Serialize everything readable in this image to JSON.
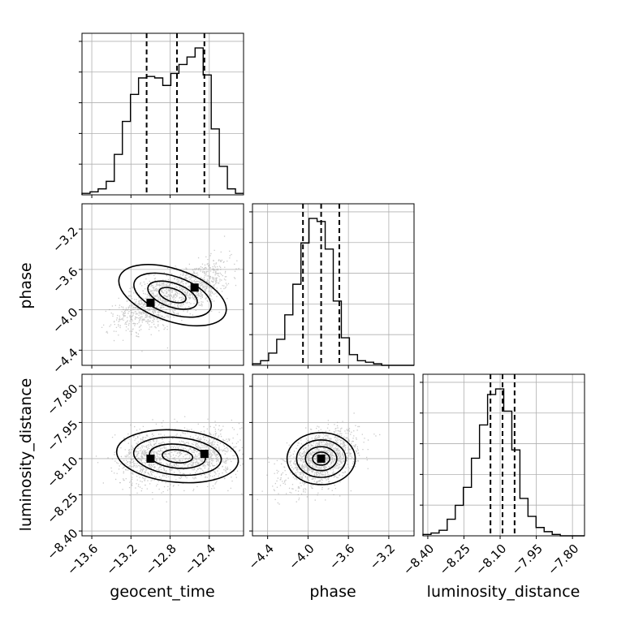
{
  "chart_data": {
    "type": "corner",
    "parameters": [
      "geocent_time",
      "phase",
      "luminosity_distance"
    ],
    "ranges": {
      "geocent_time": [
        -13.7,
        -12.05
      ],
      "phase": [
        -4.55,
        -2.95
      ],
      "luminosity_distance": [
        -8.42,
        -7.75
      ]
    },
    "ticks": {
      "geocent_time": [
        -13.6,
        -13.2,
        -12.8,
        -12.4
      ],
      "phase": [
        -4.4,
        -4.0,
        -3.6,
        -3.2
      ],
      "luminosity_distance": [
        -8.4,
        -8.25,
        -8.1,
        -7.95,
        -7.8
      ]
    },
    "tick_labels": {
      "geocent_time": [
        "−13.6",
        "−13.2",
        "−12.8",
        "−12.4"
      ],
      "phase": [
        "−4.4",
        "−4.0",
        "−3.6",
        "−3.2"
      ],
      "luminosity_distance": [
        "−8.40",
        "−8.25",
        "−8.10",
        "−7.95",
        "−7.80"
      ]
    },
    "histograms": {
      "geocent_time": {
        "bin_edges": [
          -13.7,
          -13.6175,
          -13.535,
          -13.4525,
          -13.37,
          -13.2875,
          -13.205,
          -13.1225,
          -13.04,
          -12.9575,
          -12.875,
          -12.7925,
          -12.71,
          -12.6275,
          -12.545,
          -12.4625,
          -12.38,
          -12.2975,
          -12.215,
          -12.1325,
          -12.05
        ],
        "counts": [
          1,
          2,
          4,
          9,
          27,
          49,
          67,
          78,
          79,
          78,
          73,
          81,
          87,
          92,
          98,
          80,
          44,
          19,
          4,
          1
        ],
        "quantiles": [
          -13.04,
          -12.73,
          -12.45
        ]
      },
      "phase": {
        "bin_edges": [
          -4.55,
          -4.47,
          -4.39,
          -4.31,
          -4.23,
          -4.15,
          -4.07,
          -3.99,
          -3.91,
          -3.83,
          -3.75,
          -3.67,
          -3.59,
          -3.51,
          -3.43,
          -3.35,
          -3.27,
          -3.19,
          -3.11,
          -3.03,
          -2.95
        ],
        "counts": [
          1,
          3,
          8,
          17,
          33,
          53,
          80,
          96,
          94,
          76,
          42,
          18,
          7,
          3,
          2,
          1,
          0,
          0,
          0,
          0
        ],
        "quantiles": [
          -4.05,
          -3.87,
          -3.69
        ]
      },
      "luminosity_distance": {
        "bin_edges": [
          -8.42,
          -8.3865,
          -8.353,
          -8.3195,
          -8.286,
          -8.2525,
          -8.219,
          -8.1855,
          -8.152,
          -8.1185,
          -8.085,
          -8.0515,
          -8.018,
          -7.9845,
          -7.951,
          -7.9175,
          -7.884,
          -7.8505,
          -7.817,
          -7.7835,
          -7.75
        ],
        "counts": [
          1,
          2,
          4,
          12,
          22,
          35,
          56,
          80,
          102,
          106,
          90,
          62,
          27,
          14,
          6,
          3,
          1,
          0,
          0,
          0
        ],
        "quantiles": [
          -8.14,
          -8.09,
          -8.04
        ]
      }
    },
    "density_2d": [
      {
        "x": "geocent_time",
        "y": "phase",
        "modes": [
          [
            -13.0,
            -3.93
          ],
          [
            -12.55,
            -3.78
          ]
        ],
        "correlation": 0.55
      },
      {
        "x": "geocent_time",
        "y": "luminosity_distance",
        "modes": [
          [
            -13.0,
            -8.1
          ],
          [
            -12.45,
            -8.08
          ]
        ],
        "correlation": 0.0
      },
      {
        "x": "phase",
        "y": "luminosity_distance",
        "modes": [
          [
            -3.87,
            -8.1
          ]
        ],
        "correlation": 0.45
      }
    ],
    "grid": true
  }
}
